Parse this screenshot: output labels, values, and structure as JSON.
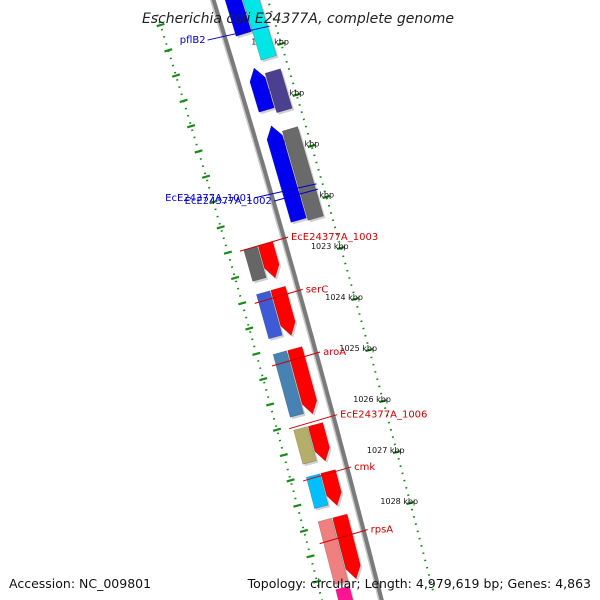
{
  "title": "Escherichia coli E24377A, complete genome",
  "accession_label": "Accession: NC_009801",
  "summary_label": "Topology: circular; Length: 4,979,619 bp; Genes: 4,863",
  "ticks": [
    {
      "label": "1018 kbp",
      "frac": 0.0
    },
    {
      "label": "1019 kbp",
      "frac": 0.097
    },
    {
      "label": "1020 kbp",
      "frac": 0.194
    },
    {
      "label": "1021 kbp",
      "frac": 0.291
    },
    {
      "label": "1022 kbp",
      "frac": 0.388
    },
    {
      "label": "1023 kbp",
      "frac": 0.485
    },
    {
      "label": "1024 kbp",
      "frac": 0.582
    },
    {
      "label": "1025 kbp",
      "frac": 0.679
    },
    {
      "label": "1026 kbp",
      "frac": 0.776
    },
    {
      "label": "1027 kbp",
      "frac": 0.873
    },
    {
      "label": "1028 kbp",
      "frac": 0.97
    }
  ],
  "genes": [
    {
      "name": "pflB2",
      "strand": "reverse",
      "start": -0.04,
      "end": 0.115,
      "color": "#00e5e5",
      "label_side": "left",
      "label_color": "#0000cc",
      "label_frac": 0.06
    },
    {
      "name": "",
      "strand": "reverse",
      "start": 0.14,
      "end": 0.215,
      "color": "#4b3f8f",
      "label_side": "none",
      "label_color": "#0000cc"
    },
    {
      "name": "EcE24377A_1001",
      "strand": "reverse",
      "start": 0.25,
      "end": 0.42,
      "color": "#6a6a6a",
      "label_side": "left",
      "label_color": "#0000cc",
      "label_frac": 0.36
    },
    {
      "name": "EcE24377A_1002",
      "strand": "reverse",
      "start": -0.04,
      "end": 0.06,
      "color": "#0000ee",
      "label_side": "none",
      "label_color": "#0000cc"
    },
    {
      "name": "",
      "strand": "reverse",
      "start": 0.125,
      "end": 0.205,
      "color": "#0000ee",
      "label_side": "none",
      "label_color": "#0000cc"
    },
    {
      "name": "",
      "strand": "reverse",
      "start": 0.235,
      "end": 0.415,
      "color": "#0000ee",
      "label_side": "left2",
      "label_color": "#0000cc",
      "label_frac": 0.38
    },
    {
      "name": "EcE24377A_1003",
      "strand": "forward",
      "start": 0.44,
      "end": 0.505,
      "color": "#ff0000",
      "label_side": "right",
      "label_color": "#cc0000",
      "label_frac": 0.44
    },
    {
      "name": "",
      "strand": "forward",
      "start": 0.44,
      "end": 0.5,
      "color": "#666666",
      "label_side": "none",
      "label_color": "#cc0000"
    },
    {
      "name": "serC",
      "strand": "forward",
      "start": 0.525,
      "end": 0.615,
      "color": "#ff0000",
      "label_side": "right",
      "label_color": "#cc0000",
      "label_frac": 0.54
    },
    {
      "name": "",
      "strand": "forward",
      "start": 0.525,
      "end": 0.61,
      "color": "#3d5bd6",
      "label_side": "none",
      "label_color": "#cc0000"
    },
    {
      "name": "aroA",
      "strand": "forward",
      "start": 0.64,
      "end": 0.765,
      "color": "#ff0000",
      "label_side": "right",
      "label_color": "#cc0000",
      "label_frac": 0.66
    },
    {
      "name": "",
      "strand": "forward",
      "start": 0.64,
      "end": 0.76,
      "color": "#4682b4",
      "label_side": "none",
      "label_color": "#cc0000"
    },
    {
      "name": "EcE24377A_1006",
      "strand": "forward",
      "start": 0.785,
      "end": 0.855,
      "color": "#ff0000",
      "label_side": "right",
      "label_color": "#cc0000",
      "label_frac": 0.78
    },
    {
      "name": "",
      "strand": "forward",
      "start": 0.785,
      "end": 0.85,
      "color": "#b5ae6a",
      "label_side": "none",
      "label_color": "#cc0000"
    },
    {
      "name": "cmk",
      "strand": "forward",
      "start": 0.875,
      "end": 0.94,
      "color": "#ff0000",
      "label_side": "right",
      "label_color": "#cc0000",
      "label_frac": 0.88
    },
    {
      "name": "",
      "strand": "forward",
      "start": 0.875,
      "end": 0.935,
      "color": "#00bfff",
      "label_side": "none",
      "label_color": "#cc0000"
    },
    {
      "name": "rpsA",
      "strand": "forward",
      "start": 0.96,
      "end": 1.08,
      "color": "#ff0000",
      "label_side": "right",
      "label_color": "#cc0000",
      "label_frac": 1.0
    },
    {
      "name": "",
      "strand": "forward",
      "start": 0.96,
      "end": 1.08,
      "color": "#f08080",
      "label_side": "none",
      "label_color": "#cc0000"
    },
    {
      "name": "",
      "strand": "forward",
      "start": 1.09,
      "end": 1.2,
      "color": "#ff1493",
      "label_side": "none",
      "label_color": "#cc0000"
    }
  ]
}
